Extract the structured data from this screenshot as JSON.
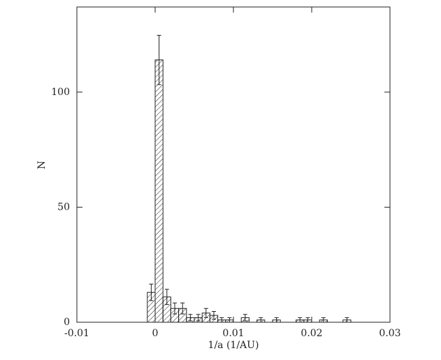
{
  "chart_data": {
    "type": "histogram",
    "xlabel": "1/a (1/AU)",
    "ylabel": "N",
    "bins": [
      -0.001,
      0,
      0.001,
      0.002,
      0.003,
      0.004,
      0.005,
      0.006,
      0.007,
      0.008,
      0.009,
      0.01,
      0.011,
      0.012,
      0.013,
      0.014,
      0.015,
      0.016,
      0.017,
      0.018,
      0.019,
      0.02,
      0.021,
      0.022,
      0.023,
      0.024,
      0.025
    ],
    "values": [
      13,
      114,
      11,
      6,
      6,
      2,
      2,
      4,
      3,
      1,
      1,
      0,
      2,
      0,
      1,
      0,
      1,
      0,
      0,
      1,
      1,
      0,
      1,
      0,
      0,
      1
    ],
    "errors": [
      3.6,
      10.7,
      3.3,
      2.4,
      2.4,
      1.4,
      1.4,
      2,
      1.7,
      1,
      1,
      0,
      1.4,
      0,
      1,
      0,
      1,
      0,
      0,
      1,
      1,
      0,
      1,
      0,
      0,
      1
    ],
    "color": "#222222",
    "xlim": [
      -0.01,
      0.03
    ],
    "xticks": [
      -0.01,
      0,
      0.01,
      0.02,
      0.03
    ],
    "ylim": [
      0,
      137
    ],
    "yticks": [
      0,
      50,
      100
    ]
  }
}
